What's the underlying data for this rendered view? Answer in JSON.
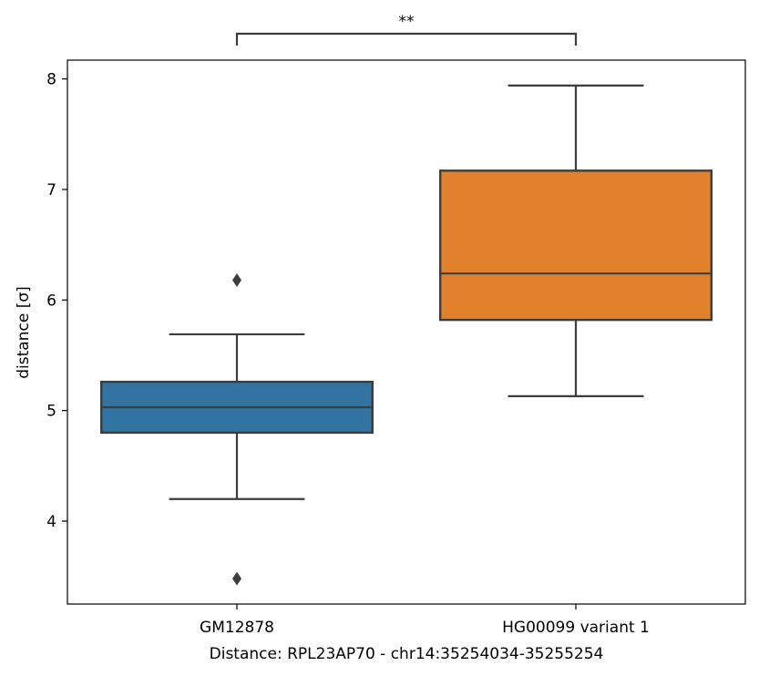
{
  "chart_data": {
    "type": "box",
    "categories": [
      "GM12878",
      "HG00099 variant 1"
    ],
    "xlabel": "Distance:  RPL23AP70 - chr14:35254034-35255254",
    "ylabel": "distance [σ]",
    "ylim": [
      3.25,
      8.17
    ],
    "yticks": [
      4,
      5,
      6,
      7,
      8
    ],
    "grid": false,
    "significance": {
      "between": [
        0,
        1
      ],
      "label": "**"
    },
    "boxes": [
      {
        "category": "GM12878",
        "color": "#3274a1",
        "whisker_low": 4.2,
        "q1": 4.8,
        "median": 5.03,
        "q3": 5.26,
        "whisker_high": 5.69,
        "outliers": [
          6.18,
          3.48
        ]
      },
      {
        "category": "HG00099 variant 1",
        "color": "#e1812c",
        "whisker_low": 5.13,
        "q1": 5.82,
        "median": 6.24,
        "q3": 7.17,
        "whisker_high": 7.94,
        "outliers": []
      }
    ]
  }
}
